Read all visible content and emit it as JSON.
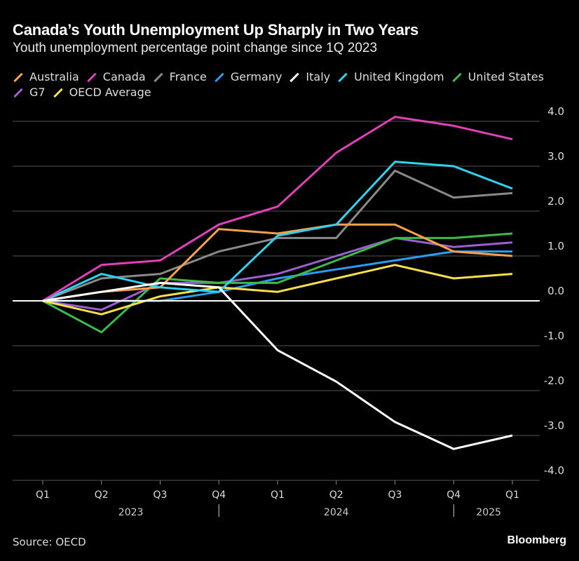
{
  "chart_data": {
    "type": "line",
    "title": "Canada’s Youth Unemployment Up Sharply in Two Years",
    "subtitle": "Youth unemployment percentage point change since 1Q 2023",
    "x": [
      "Q1",
      "Q2",
      "Q3",
      "Q4",
      "Q1",
      "Q2",
      "Q3",
      "Q4",
      "Q1"
    ],
    "year_labels": [
      "2023",
      "2024",
      "2025"
    ],
    "yticks": [
      "4.0",
      "3.0",
      "2.0",
      "1.0",
      "0.0",
      "-1.0",
      "-2.0",
      "-3.0",
      "-4.0"
    ],
    "ylim": [
      -4,
      4
    ],
    "grid": true,
    "legend_placement": "top-left",
    "series": [
      {
        "name": "Australia",
        "color": "#f7a24a",
        "values": [
          0,
          0.2,
          0.3,
          1.6,
          1.5,
          1.7,
          1.7,
          1.1,
          1.0
        ]
      },
      {
        "name": "Canada",
        "color": "#e040b8",
        "values": [
          0,
          0.8,
          0.9,
          1.7,
          2.1,
          3.3,
          4.1,
          3.9,
          3.6
        ]
      },
      {
        "name": "France",
        "color": "#8a8a8a",
        "values": [
          0,
          0.5,
          0.6,
          1.1,
          1.4,
          1.4,
          2.9,
          2.3,
          2.4
        ]
      },
      {
        "name": "Germany",
        "color": "#2a9df4",
        "values": [
          0,
          0,
          0,
          0.2,
          0.5,
          0.7,
          0.9,
          1.1,
          1.1
        ]
      },
      {
        "name": "Italy",
        "color": "#ffffff",
        "values": [
          0,
          0.2,
          0.4,
          0.3,
          -1.1,
          -1.8,
          -2.7,
          -3.3,
          -3.0
        ]
      },
      {
        "name": "United Kingdom",
        "color": "#2ed3f0",
        "values": [
          0,
          0.6,
          0.3,
          0.2,
          1.45,
          1.7,
          3.1,
          3.0,
          2.5
        ]
      },
      {
        "name": "United States",
        "color": "#3dbb4a",
        "values": [
          0,
          -0.7,
          0.5,
          0.4,
          0.4,
          0.9,
          1.4,
          1.4,
          1.5
        ]
      },
      {
        "name": "G7",
        "color": "#9b5fd0",
        "values": [
          0,
          -0.2,
          0.4,
          0.4,
          0.6,
          1.0,
          1.4,
          1.2,
          1.3
        ]
      },
      {
        "name": "OECD Average",
        "color": "#f7e04a",
        "values": [
          0,
          -0.3,
          0.1,
          0.3,
          0.2,
          0.5,
          0.8,
          0.5,
          0.6
        ]
      }
    ]
  },
  "footer": {
    "source": "Source: OECD",
    "brand": "Bloomberg"
  }
}
